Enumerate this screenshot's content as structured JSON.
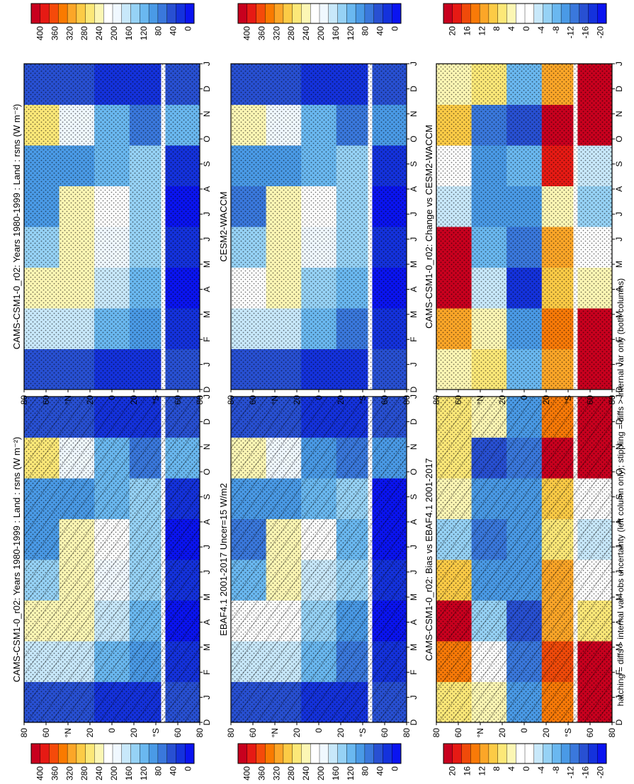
{
  "footnote": "hatching = diffs > internal var+obs uncertainty (left column only); stippling = diffs > internal var only (both columns)",
  "chart_data": [
    {
      "type": "heatmap",
      "title": "CAMS-CSM1-0_r02: Years 1980-1999 : Land : rsns (W m⁻²)",
      "x_ticks": [
        "D",
        "J",
        "F",
        "M",
        "A",
        "M",
        "J",
        "J",
        "A",
        "S",
        "O",
        "N",
        "D",
        "J"
      ],
      "y_ticks": [
        "80",
        "60",
        "°N",
        "20",
        "0",
        "20",
        "°S",
        "60",
        "80"
      ],
      "colorbar": {
        "ticks": [
          "400",
          "360",
          "320",
          "280",
          "240",
          "200",
          "160",
          "120",
          "80",
          "40",
          "0"
        ],
        "range": [
          0,
          420
        ]
      },
      "hatching": true,
      "stippling": true,
      "values": [
        [
          60,
          60,
          45,
          35,
          60
        ],
        [
          170,
          170,
          130,
          95,
          40
        ],
        [
          235,
          240,
          165,
          120,
          20
        ],
        [
          145,
          255,
          190,
          155,
          35
        ],
        [
          95,
          245,
          220,
          145,
          15
        ],
        [
          100,
          115,
          140,
          150,
          25
        ],
        [
          260,
          205,
          120,
          90,
          120
        ],
        [
          60,
          60,
          45,
          35,
          60
        ]
      ]
    },
    {
      "type": "heatmap",
      "title": "CAMS-CSM1-0_r02: Years 1980-1999 : Land : rsns (W m⁻²)",
      "x_ticks": [
        "D",
        "J",
        "F",
        "M",
        "A",
        "M",
        "J",
        "J",
        "A",
        "S",
        "O",
        "N",
        "D",
        "J"
      ],
      "y_ticks": [
        "80",
        "60",
        "°N",
        "20",
        "0",
        "20",
        "°S",
        "60",
        "80"
      ],
      "colorbar": {
        "ticks": [
          "400",
          "360",
          "320",
          "280",
          "240",
          "200",
          "160",
          "120",
          "80",
          "40",
          "0"
        ],
        "range": [
          0,
          420
        ]
      },
      "hatching": false,
      "stippling": true,
      "values": [
        [
          60,
          60,
          45,
          35,
          60
        ],
        [
          170,
          170,
          130,
          95,
          40
        ],
        [
          235,
          240,
          165,
          120,
          20
        ],
        [
          145,
          255,
          190,
          155,
          35
        ],
        [
          95,
          245,
          220,
          145,
          15
        ],
        [
          100,
          115,
          140,
          150,
          25
        ],
        [
          260,
          205,
          120,
          90,
          120
        ],
        [
          60,
          60,
          45,
          35,
          60
        ]
      ]
    },
    {
      "type": "heatmap",
      "title": "EBAF4.1 2001-2017 Uncer=15 W/m2",
      "x_ticks": [
        "D",
        "J",
        "F",
        "M",
        "A",
        "M",
        "J",
        "J",
        "A",
        "S",
        "O",
        "N",
        "D",
        "J"
      ],
      "y_ticks": [
        "80",
        "60",
        "°N",
        "20",
        "0",
        "20",
        "°S",
        "60",
        "80"
      ],
      "colorbar": {
        "ticks": [
          "400",
          "360",
          "320",
          "280",
          "240",
          "200",
          "160",
          "120",
          "80",
          "40",
          "0"
        ],
        "range": [
          0,
          420
        ]
      },
      "hatching": true,
      "stippling": true,
      "values": [
        [
          55,
          55,
          40,
          30,
          55
        ],
        [
          165,
          165,
          125,
          90,
          35
        ],
        [
          225,
          230,
          160,
          115,
          18
        ],
        [
          140,
          250,
          185,
          150,
          30
        ],
        [
          90,
          240,
          215,
          140,
          12
        ],
        [
          95,
          110,
          135,
          145,
          22
        ],
        [
          250,
          200,
          115,
          85,
          110
        ],
        [
          55,
          55,
          40,
          30,
          55
        ]
      ]
    },
    {
      "type": "heatmap",
      "title": "CESM2-WACCM",
      "x_ticks": [
        "D",
        "J",
        "F",
        "M",
        "A",
        "M",
        "J",
        "J",
        "A",
        "S",
        "O",
        "N",
        "D",
        "J"
      ],
      "y_ticks": [
        "80",
        "60",
        "°N",
        "20",
        "0",
        "20",
        "°S",
        "60",
        "80"
      ],
      "colorbar": {
        "ticks": [
          "400",
          "360",
          "320",
          "280",
          "240",
          "200",
          "160",
          "120",
          "80",
          "40",
          "0"
        ],
        "range": [
          0,
          420
        ]
      },
      "hatching": false,
      "stippling": true,
      "values": [
        [
          58,
          58,
          42,
          33,
          58
        ],
        [
          168,
          168,
          128,
          92,
          38
        ],
        [
          230,
          235,
          162,
          118,
          19
        ],
        [
          142,
          252,
          188,
          152,
          32
        ],
        [
          92,
          242,
          218,
          142,
          14
        ],
        [
          98,
          112,
          138,
          148,
          24
        ],
        [
          255,
          202,
          118,
          88,
          115
        ],
        [
          58,
          58,
          42,
          33,
          58
        ]
      ]
    },
    {
      "type": "heatmap",
      "title": "CAMS-CSM1-0_r02: Bias vs EBAF4.1 2001-2017",
      "x_ticks": [
        "D",
        "J",
        "F",
        "M",
        "A",
        "M",
        "J",
        "J",
        "A",
        "S",
        "O",
        "N",
        "D",
        "J"
      ],
      "y_ticks": [
        "80",
        "60",
        "°N",
        "20",
        "0",
        "20",
        "°S",
        "60",
        "80"
      ],
      "colorbar": {
        "ticks": [
          "20",
          "16",
          "12",
          "8",
          "4",
          "0",
          "-4",
          "-8",
          "-12",
          "-16",
          "-20"
        ],
        "range": [
          -22,
          22
        ]
      },
      "hatching": true,
      "stippling": true,
      "values": [
        [
          6,
          4,
          -10,
          14,
          22
        ],
        [
          14,
          2,
          -14,
          16,
          20
        ],
        [
          22,
          -6,
          -16,
          10,
          6
        ],
        [
          8,
          -10,
          -12,
          12,
          2
        ],
        [
          -6,
          -14,
          -12,
          6,
          -4
        ],
        [
          4,
          -12,
          -10,
          8,
          -2
        ],
        [
          6,
          -16,
          -14,
          20,
          20
        ],
        [
          6,
          4,
          -10,
          14,
          22
        ]
      ]
    },
    {
      "type": "heatmap",
      "title": "CAMS-CSM1-0_r02: Change vs CESM2-WACCM",
      "x_ticks": [
        "D",
        "J",
        "F",
        "M",
        "A",
        "M",
        "J",
        "J",
        "A",
        "S",
        "O",
        "N",
        "D",
        "J"
      ],
      "y_ticks": [
        "80",
        "60",
        "°N",
        "20",
        "0",
        "20",
        "°S",
        "60",
        "80"
      ],
      "colorbar": {
        "ticks": [
          "20",
          "16",
          "12",
          "8",
          "4",
          "0",
          "-4",
          "-8",
          "-12",
          "-16",
          "-20"
        ],
        "range": [
          -22,
          22
        ]
      },
      "hatching": false,
      "stippling": true,
      "values": [
        [
          4,
          6,
          -8,
          12,
          22
        ],
        [
          12,
          4,
          -12,
          14,
          20
        ],
        [
          22,
          -4,
          -18,
          8,
          4
        ],
        [
          20,
          -8,
          -14,
          10,
          -2
        ],
        [
          -4,
          -12,
          -10,
          4,
          -6
        ],
        [
          2,
          -10,
          -8,
          18,
          -4
        ],
        [
          8,
          -14,
          -16,
          22,
          22
        ],
        [
          4,
          6,
          -8,
          12,
          22
        ]
      ]
    }
  ]
}
